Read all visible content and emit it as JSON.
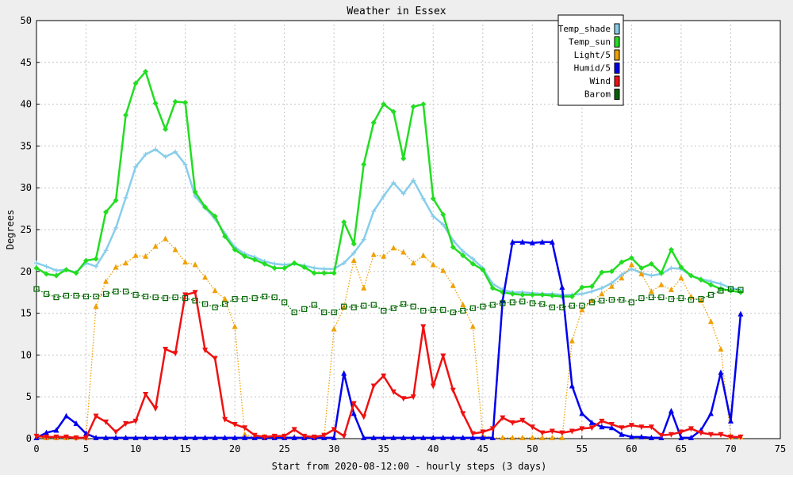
{
  "chart_data": {
    "type": "line",
    "title": "Weather in Essex",
    "xlabel": "Start from 2020-08-12:00 - hourly steps (3 days)",
    "ylabel": "Degrees",
    "xlim": [
      0,
      75
    ],
    "ylim": [
      0,
      50
    ],
    "xticks": [
      0,
      5,
      10,
      15,
      20,
      25,
      30,
      35,
      40,
      45,
      50,
      55,
      60,
      65,
      70,
      75
    ],
    "yticks": [
      0,
      5,
      10,
      15,
      20,
      25,
      30,
      35,
      40,
      45,
      50
    ],
    "grid": true,
    "legend_position": "top-right",
    "x": [
      0,
      1,
      2,
      3,
      4,
      5,
      6,
      7,
      8,
      9,
      10,
      11,
      12,
      13,
      14,
      15,
      16,
      17,
      18,
      19,
      20,
      21,
      22,
      23,
      24,
      25,
      26,
      27,
      28,
      29,
      30,
      31,
      32,
      33,
      34,
      35,
      36,
      37,
      38,
      39,
      40,
      41,
      42,
      43,
      44,
      45,
      46,
      47,
      48,
      49,
      50,
      51,
      52,
      53,
      54,
      55,
      56,
      57,
      58,
      59,
      60,
      61,
      62,
      63,
      64,
      65,
      66,
      67,
      68,
      69,
      70,
      71
    ],
    "series": [
      {
        "name": "Temp_shade",
        "color": "#87ceeb",
        "style": "solid",
        "marker": "plus",
        "values": [
          21.0,
          20.6,
          20.1,
          20.2,
          19.9,
          21.0,
          20.6,
          22.5,
          25.2,
          28.8,
          32.5,
          34.0,
          34.6,
          33.7,
          34.3,
          32.8,
          29.0,
          27.6,
          26.3,
          24.5,
          22.9,
          22.1,
          21.7,
          21.2,
          20.9,
          20.8,
          20.9,
          20.7,
          20.4,
          20.3,
          20.3,
          21.0,
          22.2,
          23.8,
          27.2,
          29.0,
          30.6,
          29.3,
          30.9,
          28.7,
          26.6,
          25.6,
          23.7,
          22.4,
          21.5,
          20.4,
          18.5,
          17.8,
          17.5,
          17.5,
          17.4,
          17.3,
          17.3,
          17.2,
          17.2,
          17.3,
          17.6,
          18.0,
          18.6,
          19.6,
          20.3,
          19.8,
          19.5,
          19.7,
          20.4,
          20.3,
          19.5,
          19.1,
          18.8,
          18.5,
          18.0,
          17.8
        ]
      },
      {
        "name": "Temp_sun",
        "color": "#22dd22",
        "style": "solid",
        "marker": "diamond",
        "values": [
          20.4,
          19.7,
          19.5,
          20.2,
          19.8,
          21.3,
          21.5,
          27.1,
          28.5,
          38.7,
          42.5,
          43.9,
          40.1,
          37.0,
          40.3,
          40.2,
          29.5,
          27.7,
          26.6,
          24.2,
          22.6,
          21.8,
          21.4,
          20.9,
          20.4,
          20.4,
          21.0,
          20.5,
          19.8,
          19.8,
          19.8,
          25.9,
          23.3,
          32.8,
          37.8,
          40.0,
          39.1,
          33.5,
          39.7,
          40.0,
          28.7,
          26.8,
          22.9,
          21.9,
          20.9,
          20.2,
          18.0,
          17.5,
          17.3,
          17.2,
          17.2,
          17.2,
          17.1,
          17.0,
          17.0,
          18.1,
          18.2,
          19.9,
          20.0,
          21.1,
          21.6,
          20.4,
          20.9,
          19.8,
          22.6,
          20.5,
          19.5,
          19.0,
          18.4,
          17.9,
          17.7,
          17.5
        ]
      },
      {
        "name": "Light/5",
        "color": "#f0a000",
        "style": "dotted",
        "marker": "triangle-up",
        "values": [
          0.1,
          0.1,
          0.1,
          0.1,
          0.1,
          0.1,
          15.8,
          18.8,
          20.5,
          21.0,
          21.9,
          21.8,
          23.0,
          23.9,
          22.6,
          21.1,
          20.8,
          19.3,
          17.7,
          16.7,
          13.4,
          0.5,
          0.2,
          0.2,
          0.2,
          0.2,
          0.2,
          0.2,
          0.1,
          0.1,
          13.1,
          15.7,
          21.3,
          18.0,
          22.0,
          21.8,
          22.8,
          22.3,
          21.0,
          21.9,
          20.8,
          20.1,
          18.3,
          16.0,
          13.4,
          0.4,
          0.1,
          0.1,
          0.1,
          0.1,
          0.1,
          0.1,
          0.1,
          0.1,
          11.7,
          15.4,
          16.5,
          17.3,
          18.2,
          19.2,
          20.8,
          19.7,
          17.6,
          18.4,
          17.8,
          19.2,
          17.0,
          16.5,
          14.0,
          10.7,
          0.2,
          0.2
        ]
      },
      {
        "name": "Humid/5",
        "color": "#0000ee",
        "style": "solid",
        "marker": "triangle-up",
        "values": [
          0.1,
          0.7,
          1.0,
          2.7,
          1.8,
          0.6,
          0.1,
          0.1,
          0.1,
          0.1,
          0.1,
          0.1,
          0.1,
          0.1,
          0.1,
          0.1,
          0.1,
          0.1,
          0.1,
          0.1,
          0.1,
          0.1,
          0.1,
          0.1,
          0.1,
          0.1,
          0.1,
          0.1,
          0.1,
          0.1,
          0.1,
          7.8,
          3.0,
          0.1,
          0.1,
          0.1,
          0.1,
          0.1,
          0.1,
          0.1,
          0.1,
          0.1,
          0.1,
          0.1,
          0.1,
          0.1,
          0.1,
          16.5,
          23.5,
          23.5,
          23.4,
          23.5,
          23.5,
          18.1,
          6.3,
          3.0,
          1.9,
          1.4,
          1.3,
          0.5,
          0.2,
          0.2,
          0.1,
          0.1,
          3.3,
          0.1,
          0.1,
          1.0,
          3.0,
          7.9,
          2.1,
          14.9
        ]
      },
      {
        "name": "Wind",
        "color": "#ee1111",
        "style": "solid",
        "marker": "triangle-down",
        "values": [
          0.3,
          0.2,
          0.2,
          0.2,
          0.1,
          0.1,
          2.7,
          2.0,
          0.8,
          1.8,
          2.1,
          5.3,
          3.6,
          10.7,
          10.2,
          17.2,
          17.5,
          10.6,
          9.6,
          2.3,
          1.7,
          1.3,
          0.4,
          0.2,
          0.3,
          0.3,
          1.1,
          0.3,
          0.2,
          0.4,
          1.1,
          0.3,
          4.2,
          2.6,
          6.3,
          7.5,
          5.6,
          4.8,
          5.0,
          13.4,
          6.3,
          9.9,
          5.8,
          3.0,
          0.6,
          0.8,
          1.2,
          2.5,
          1.9,
          2.2,
          1.4,
          0.7,
          0.9,
          0.7,
          0.9,
          1.2,
          1.3,
          2.1,
          1.7,
          1.3,
          1.6,
          1.4,
          1.4,
          0.4,
          0.5,
          0.8,
          1.2,
          0.7,
          0.5,
          0.5,
          0.2,
          0.2
        ]
      },
      {
        "name": "Barom",
        "color": "#006400",
        "style": "dotted",
        "marker": "square",
        "values": [
          17.9,
          17.3,
          16.9,
          17.1,
          17.1,
          17.0,
          17.0,
          17.3,
          17.6,
          17.6,
          17.2,
          17.0,
          16.9,
          16.8,
          16.9,
          16.8,
          16.5,
          16.1,
          15.7,
          16.1,
          16.7,
          16.7,
          16.8,
          17.0,
          16.9,
          16.3,
          15.1,
          15.5,
          16.0,
          15.1,
          15.1,
          15.8,
          15.7,
          15.9,
          16.0,
          15.3,
          15.6,
          16.1,
          15.8,
          15.3,
          15.4,
          15.4,
          15.1,
          15.3,
          15.6,
          15.8,
          16.0,
          16.2,
          16.3,
          16.4,
          16.2,
          16.1,
          15.7,
          15.7,
          15.9,
          15.9,
          16.3,
          16.5,
          16.6,
          16.6,
          16.3,
          16.8,
          16.9,
          16.9,
          16.7,
          16.8,
          16.6,
          16.7,
          17.2,
          17.7,
          17.9,
          17.8
        ]
      }
    ]
  }
}
